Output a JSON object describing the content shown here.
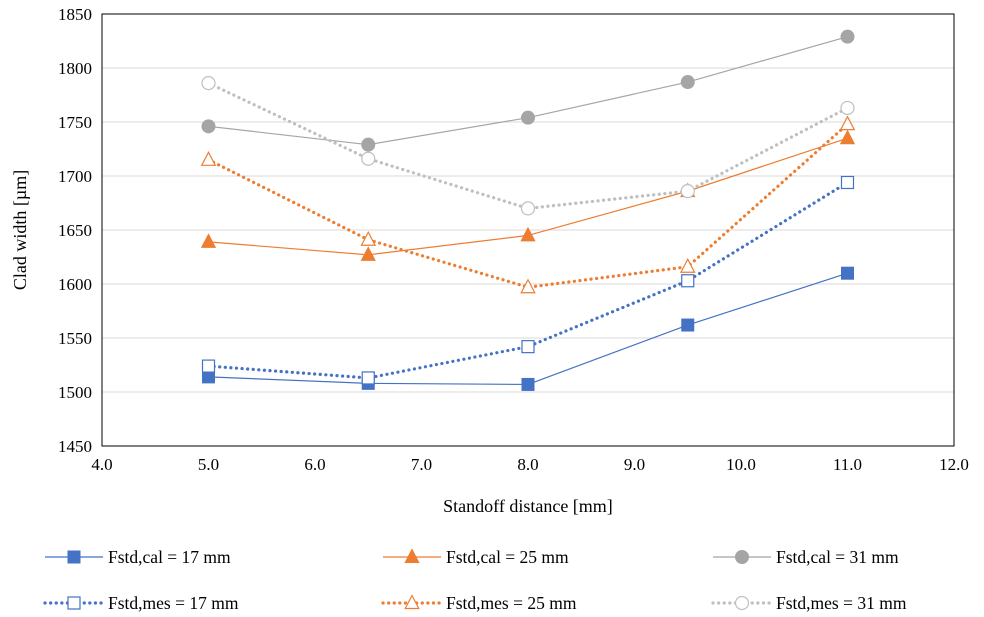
{
  "chart_data": {
    "type": "line",
    "xlabel": "Standoff distance [mm]",
    "ylabel": "Clad width [µm]",
    "xlim": [
      4.0,
      12.0
    ],
    "ylim": [
      1450,
      1850
    ],
    "x_ticks": [
      "4.0",
      "5.0",
      "6.0",
      "7.0",
      "8.0",
      "9.0",
      "10.0",
      "11.0",
      "12.0"
    ],
    "y_ticks": [
      "1450",
      "1500",
      "1550",
      "1600",
      "1650",
      "1700",
      "1750",
      "1800",
      "1850"
    ],
    "grid": "horizontal",
    "legend_position": "bottom",
    "x": [
      5.0,
      6.5,
      8.0,
      9.5,
      11.0
    ],
    "series": [
      {
        "name": "Fstd,cal = 17 mm",
        "values": [
          1514,
          1508,
          1507,
          1562,
          1610
        ],
        "color": "#4472C4",
        "marker": "square-filled",
        "line": "solid"
      },
      {
        "name": "Fstd,cal = 25 mm",
        "values": [
          1639,
          1627,
          1645,
          1686,
          1735
        ],
        "color": "#ED7D31",
        "marker": "triangle-filled",
        "line": "solid"
      },
      {
        "name": "Fstd,cal = 31 mm",
        "values": [
          1746,
          1729,
          1754,
          1787,
          1829
        ],
        "color": "#A5A5A5",
        "marker": "circle-filled",
        "line": "solid"
      },
      {
        "name": "Fstd,mes = 17 mm",
        "values": [
          1524,
          1513,
          1542,
          1603,
          1694
        ],
        "color": "#4472C4",
        "marker": "square-open",
        "line": "dotted"
      },
      {
        "name": "Fstd,mes = 25 mm",
        "values": [
          1715,
          1641,
          1597,
          1616,
          1748
        ],
        "color": "#ED7D31",
        "marker": "triangle-open",
        "line": "dotted"
      },
      {
        "name": "Fstd,mes = 31 mm",
        "values": [
          1786,
          1716,
          1670,
          1686,
          1763
        ],
        "color": "#BFBFBF",
        "marker": "circle-open",
        "line": "dotted"
      }
    ]
  }
}
